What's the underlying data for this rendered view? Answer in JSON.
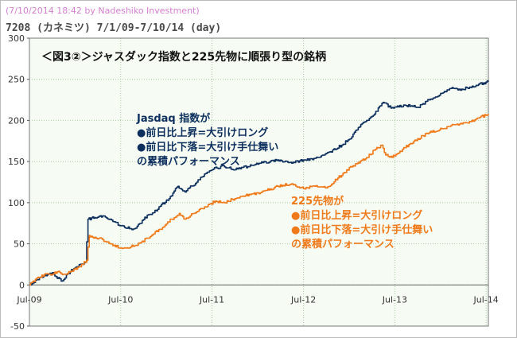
{
  "header": {
    "watermark": "(7/10/2014 18:42 by Nadeshiko Investment)",
    "subtitle": "7208 (カネミツ)  7/1/09-7/10/14 (day)"
  },
  "colors": {
    "jasdaq": "#0d2f5e",
    "n225": "#f07a1a",
    "grid": "#a8c8a0",
    "plot_bg": "#f6fcf4"
  },
  "chart_data": {
    "type": "line",
    "title": "＜図3②＞ジャスダック指数と225先物に順張り型の銘柄",
    "xlabel": "",
    "ylabel": "",
    "xlim": [
      "2009-07-01",
      "2014-07-10"
    ],
    "ylim": [
      -50,
      300
    ],
    "yticks": [
      -50,
      0,
      50,
      100,
      150,
      200,
      250,
      300
    ],
    "xticks": [
      {
        "label": "Jul-09",
        "date": "2009-07-01"
      },
      {
        "label": "Jul-10",
        "date": "2010-07-01"
      },
      {
        "label": "Jul-11",
        "date": "2011-07-01"
      },
      {
        "label": "Jul-12",
        "date": "2012-07-01"
      },
      {
        "label": "Jul-13",
        "date": "2013-07-01"
      },
      {
        "label": "Jul-14",
        "date": "2014-07-01"
      }
    ],
    "grid": true,
    "series": [
      {
        "color": "#0d2f5e",
        "points": [
          [
            "2009-07-01",
            0
          ],
          [
            "2009-07-20",
            3
          ],
          [
            "2009-08-10",
            9
          ],
          [
            "2009-09-01",
            12
          ],
          [
            "2009-10-01",
            15
          ],
          [
            "2009-10-15",
            10
          ],
          [
            "2009-11-10",
            5
          ],
          [
            "2009-12-01",
            14
          ],
          [
            "2010-01-05",
            22
          ],
          [
            "2010-02-01",
            25
          ],
          [
            "2010-02-10",
            28
          ],
          [
            "2010-02-20",
            80
          ],
          [
            "2010-03-20",
            82
          ],
          [
            "2010-04-20",
            84
          ],
          [
            "2010-05-20",
            80
          ],
          [
            "2010-07-01",
            72
          ],
          [
            "2010-08-20",
            68
          ],
          [
            "2010-09-20",
            75
          ],
          [
            "2010-10-15",
            85
          ],
          [
            "2010-11-10",
            88
          ],
          [
            "2010-12-01",
            95
          ],
          [
            "2011-01-10",
            105
          ],
          [
            "2011-02-15",
            120
          ],
          [
            "2011-03-15",
            113
          ],
          [
            "2011-04-01",
            118
          ],
          [
            "2011-05-01",
            125
          ],
          [
            "2011-06-01",
            135
          ],
          [
            "2011-07-01",
            140
          ],
          [
            "2011-08-15",
            145
          ],
          [
            "2011-10-01",
            140
          ],
          [
            "2011-11-01",
            143
          ],
          [
            "2012-01-10",
            148
          ],
          [
            "2012-03-20",
            152
          ],
          [
            "2012-05-15",
            148
          ],
          [
            "2012-07-01",
            152
          ],
          [
            "2012-09-01",
            155
          ],
          [
            "2012-10-15",
            162
          ],
          [
            "2012-12-01",
            170
          ],
          [
            "2013-01-10",
            180
          ],
          [
            "2013-02-15",
            195
          ],
          [
            "2013-03-10",
            200
          ],
          [
            "2013-04-01",
            205
          ],
          [
            "2013-05-15",
            222
          ],
          [
            "2013-06-15",
            215
          ],
          [
            "2013-08-15",
            218
          ],
          [
            "2013-10-01",
            216
          ],
          [
            "2013-11-15",
            225
          ],
          [
            "2014-01-05",
            233
          ],
          [
            "2014-02-15",
            240
          ],
          [
            "2014-03-15",
            238
          ],
          [
            "2014-05-01",
            240
          ],
          [
            "2014-06-01",
            244
          ],
          [
            "2014-07-10",
            247
          ]
        ]
      },
      {
        "color": "#f07a1a",
        "points": [
          [
            "2009-07-01",
            0
          ],
          [
            "2009-07-25",
            7
          ],
          [
            "2009-08-20",
            12
          ],
          [
            "2009-09-20",
            13
          ],
          [
            "2009-10-20",
            16
          ],
          [
            "2009-11-15",
            13
          ],
          [
            "2009-12-15",
            17
          ],
          [
            "2010-01-20",
            22
          ],
          [
            "2010-02-15",
            30
          ],
          [
            "2010-02-25",
            60
          ],
          [
            "2010-03-20",
            58
          ],
          [
            "2010-04-20",
            55
          ],
          [
            "2010-05-20",
            50
          ],
          [
            "2010-07-01",
            45
          ],
          [
            "2010-08-20",
            47
          ],
          [
            "2010-09-20",
            52
          ],
          [
            "2010-11-01",
            60
          ],
          [
            "2010-12-15",
            70
          ],
          [
            "2011-01-20",
            80
          ],
          [
            "2011-02-20",
            87
          ],
          [
            "2011-03-15",
            80
          ],
          [
            "2011-04-20",
            87
          ],
          [
            "2011-06-01",
            95
          ],
          [
            "2011-07-15",
            102
          ],
          [
            "2011-08-20",
            100
          ],
          [
            "2011-09-20",
            104
          ],
          [
            "2011-11-01",
            108
          ],
          [
            "2012-01-10",
            112
          ],
          [
            "2012-03-20",
            120
          ],
          [
            "2012-05-15",
            123
          ],
          [
            "2012-07-01",
            117
          ],
          [
            "2012-08-15",
            120
          ],
          [
            "2012-10-01",
            118
          ],
          [
            "2012-11-15",
            130
          ],
          [
            "2013-01-15",
            145
          ],
          [
            "2013-03-10",
            155
          ],
          [
            "2013-04-15",
            165
          ],
          [
            "2013-05-10",
            170
          ],
          [
            "2013-05-25",
            158
          ],
          [
            "2013-06-20",
            155
          ],
          [
            "2013-08-01",
            165
          ],
          [
            "2013-09-15",
            175
          ],
          [
            "2013-11-15",
            185
          ],
          [
            "2014-01-10",
            190
          ],
          [
            "2014-02-15",
            195
          ],
          [
            "2014-04-15",
            197
          ],
          [
            "2014-06-01",
            203
          ],
          [
            "2014-07-10",
            208
          ]
        ]
      }
    ],
    "annotations": [
      {
        "color": "#0d2f5e",
        "lines": [
          "Jasdaq 指数が",
          "●前日比上昇=大引けロング",
          "●前日比下落=大引け手仕舞い",
          "の累積パフォーマンス"
        ]
      },
      {
        "color": "#f07a1a",
        "lines": [
          "225先物が",
          "●前日比上昇=大引けロング",
          "●前日比下落=大引け手仕舞い",
          "の累積パフォーマンス"
        ]
      }
    ]
  }
}
